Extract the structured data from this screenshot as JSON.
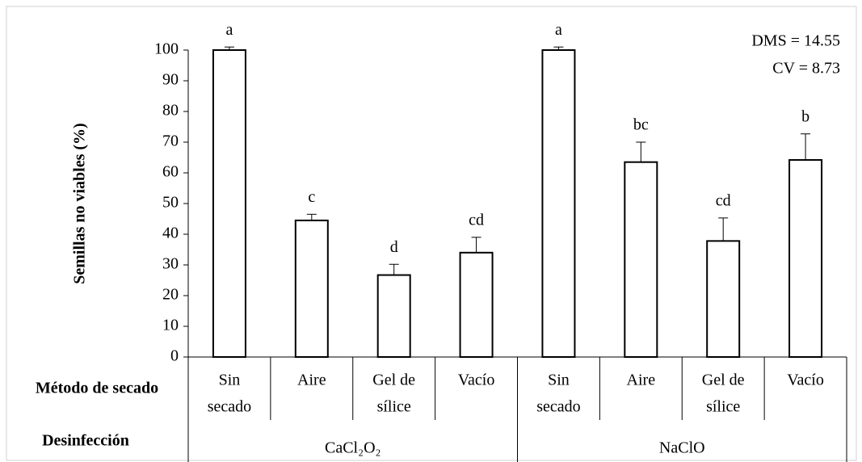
{
  "chart_data": {
    "type": "bar",
    "y_label": "Semillas no viables (%)",
    "row_labels": [
      "Método de secado",
      "Desinfección"
    ],
    "categories": [
      [
        "Sin",
        "secado"
      ],
      [
        "Aire"
      ],
      [
        "Gel de",
        "sílice"
      ],
      [
        "Vacío"
      ],
      [
        "Sin",
        "secado"
      ],
      [
        "Aire"
      ],
      [
        "Gel de",
        "sílice"
      ],
      [
        "Vacío"
      ]
    ],
    "groups": [
      "CaCl₂O₂",
      "NaClO"
    ],
    "values": [
      100,
      44.5,
      26.7,
      34,
      100,
      63.5,
      37.8,
      64.2
    ],
    "errors": [
      1,
      2,
      3.5,
      5,
      1,
      6.5,
      7.5,
      8.5
    ],
    "letters": [
      "a",
      "c",
      "d",
      "cd",
      "a",
      "bc",
      "cd",
      "b"
    ],
    "annotations": [
      "DMS = 14.55",
      "CV = 8.73"
    ],
    "color": "#ffffff",
    "ylim": [
      0,
      100
    ],
    "yticks": [
      0,
      10,
      20,
      30,
      40,
      50,
      60,
      70,
      80,
      90,
      100
    ],
    "grid": false
  }
}
